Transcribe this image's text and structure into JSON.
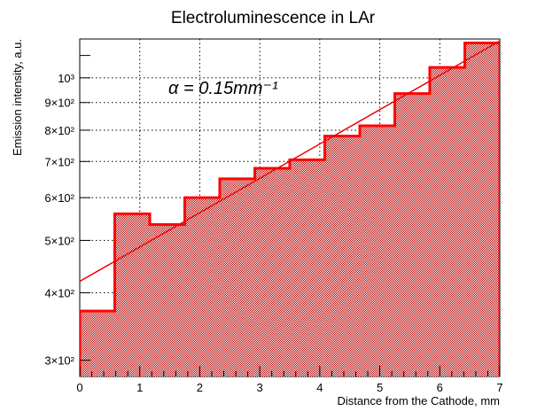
{
  "chart_data": {
    "type": "histogram",
    "title": "Electroluminescence in LAr",
    "xlabel": "Distance from the Cathode, mm",
    "ylabel": "Emission intensity, a.u.",
    "annotation": "α = 0.15mm⁻¹",
    "xlim": [
      0,
      7
    ],
    "ylim": [
      280,
      1180
    ],
    "y_scale": "log",
    "grid": true,
    "x_ticks": [
      0,
      1,
      2,
      3,
      4,
      5,
      6,
      7
    ],
    "x_tick_labels": [
      "0",
      "1",
      "2",
      "3",
      "4",
      "5",
      "6",
      "7"
    ],
    "y_ticks": [
      300,
      400,
      500,
      600,
      700,
      800,
      900,
      1000
    ],
    "y_tick_labels": [
      "3×10²",
      "4×10²",
      "5×10²",
      "6×10²",
      "7×10²",
      "8×10²",
      "9×10²",
      "10³"
    ],
    "bin_edges": [
      0,
      0.583,
      1.167,
      1.75,
      2.333,
      2.917,
      3.5,
      4.083,
      4.667,
      5.25,
      5.833,
      6.417,
      7.0
    ],
    "values": [
      370,
      560,
      535,
      600,
      650,
      680,
      705,
      780,
      815,
      935,
      1045,
      1160
    ],
    "fit": {
      "type": "exponential",
      "x": [
        0,
        7
      ],
      "y": [
        420,
        1170
      ]
    },
    "colors": {
      "hist": "#ff0000",
      "fit": "#ee0000",
      "fill": "#b30000"
    }
  }
}
